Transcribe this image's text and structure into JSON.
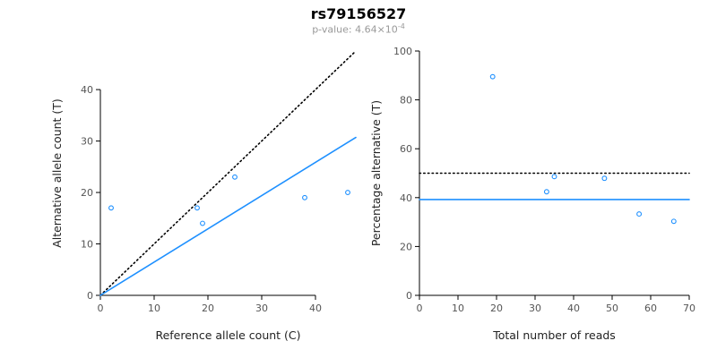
{
  "title": "rs79156527",
  "pvalue": {
    "text": "p-value: 4.64×10",
    "exponent": "-4"
  },
  "colors": {
    "accent_blue": "#1E90FF",
    "line_black": "#000000",
    "subtitle_gray": "#999999"
  },
  "chart_data": [
    {
      "name": "ref-vs-alt-scatter",
      "type": "scatter",
      "xlabel": "Reference allele count (C)",
      "ylabel": "Alternative allele count (T)",
      "xlim": [
        0,
        47.5
      ],
      "ylim": [
        0,
        47.5
      ],
      "xticks": [
        0,
        10,
        20,
        30,
        40
      ],
      "yticks": [
        0,
        10,
        20,
        30,
        40
      ],
      "points": [
        [
          2,
          17
        ],
        [
          19,
          14
        ],
        [
          18,
          17
        ],
        [
          25,
          23
        ],
        [
          38,
          19
        ],
        [
          46,
          20
        ]
      ],
      "point_color": "#1E90FF",
      "lines": [
        {
          "name": "identity-dotted-line",
          "style": "dotted",
          "color": "#000000",
          "from": [
            0,
            0
          ],
          "to": [
            47.5,
            47.5
          ]
        },
        {
          "name": "fitted-ratio-line",
          "style": "solid",
          "color": "#1E90FF",
          "from": [
            0,
            0
          ],
          "to": [
            47.5,
            30.7
          ]
        }
      ]
    },
    {
      "name": "reads-vs-percentage-scatter",
      "type": "scatter",
      "xlabel": "Total number of reads",
      "ylabel": "Percentage alternative (T)",
      "xlim": [
        0,
        70
      ],
      "ylim": [
        0,
        100
      ],
      "xticks": [
        0,
        10,
        20,
        30,
        40,
        50,
        60,
        70
      ],
      "yticks": [
        0,
        20,
        40,
        60,
        80,
        100
      ],
      "points": [
        [
          19,
          89.5
        ],
        [
          33,
          42.4
        ],
        [
          35,
          48.6
        ],
        [
          48,
          47.9
        ],
        [
          57,
          33.3
        ],
        [
          66,
          30.3
        ]
      ],
      "point_color": "#1E90FF",
      "lines": [
        {
          "name": "expected-50pct-line",
          "style": "dotted",
          "color": "#000000",
          "y": 50
        },
        {
          "name": "observed-ratio-line",
          "style": "solid",
          "color": "#1E90FF",
          "y": 39.2
        }
      ]
    }
  ]
}
